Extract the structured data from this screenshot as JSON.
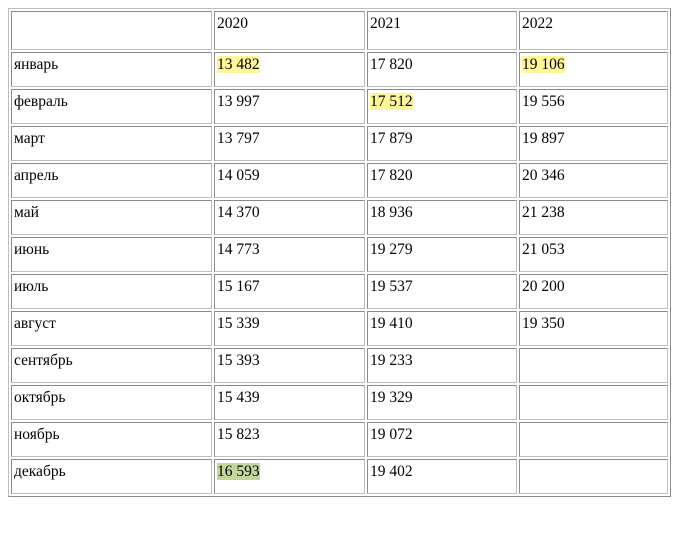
{
  "table": {
    "headers": [
      "",
      "2020",
      "2021",
      "2022"
    ],
    "rows": [
      {
        "month": "январь",
        "v2020": "13 482",
        "v2021": "17 820",
        "v2022": "19 106"
      },
      {
        "month": "февраль",
        "v2020": "13 997",
        "v2021": "17 512",
        "v2022": "19 556"
      },
      {
        "month": "март",
        "v2020": "13 797",
        "v2021": "17 879",
        "v2022": "19 897"
      },
      {
        "month": "апрель",
        "v2020": "14 059",
        "v2021": "17 820",
        "v2022": "20 346"
      },
      {
        "month": "май",
        "v2020": "14 370",
        "v2021": "18 936",
        "v2022": "21 238"
      },
      {
        "month": "июнь",
        "v2020": "14 773",
        "v2021": "19 279",
        "v2022": "21 053"
      },
      {
        "month": "июль",
        "v2020": "15 167",
        "v2021": "19 537",
        "v2022": "20 200"
      },
      {
        "month": "август",
        "v2020": "15 339",
        "v2021": "19 410",
        "v2022": "19 350"
      },
      {
        "month": "сентябрь",
        "v2020": "15 393",
        "v2021": "19 233",
        "v2022": ""
      },
      {
        "month": "октябрь",
        "v2020": "15 439",
        "v2021": "19 329",
        "v2022": ""
      },
      {
        "month": "ноябрь",
        "v2020": "15 823",
        "v2021": "19 072",
        "v2022": ""
      },
      {
        "month": "декабрь",
        "v2020": "16 593",
        "v2021": "19 402",
        "v2022": ""
      }
    ]
  },
  "highlight_colors": {
    "yellow": "#fff599",
    "green": "#c3d69b"
  }
}
